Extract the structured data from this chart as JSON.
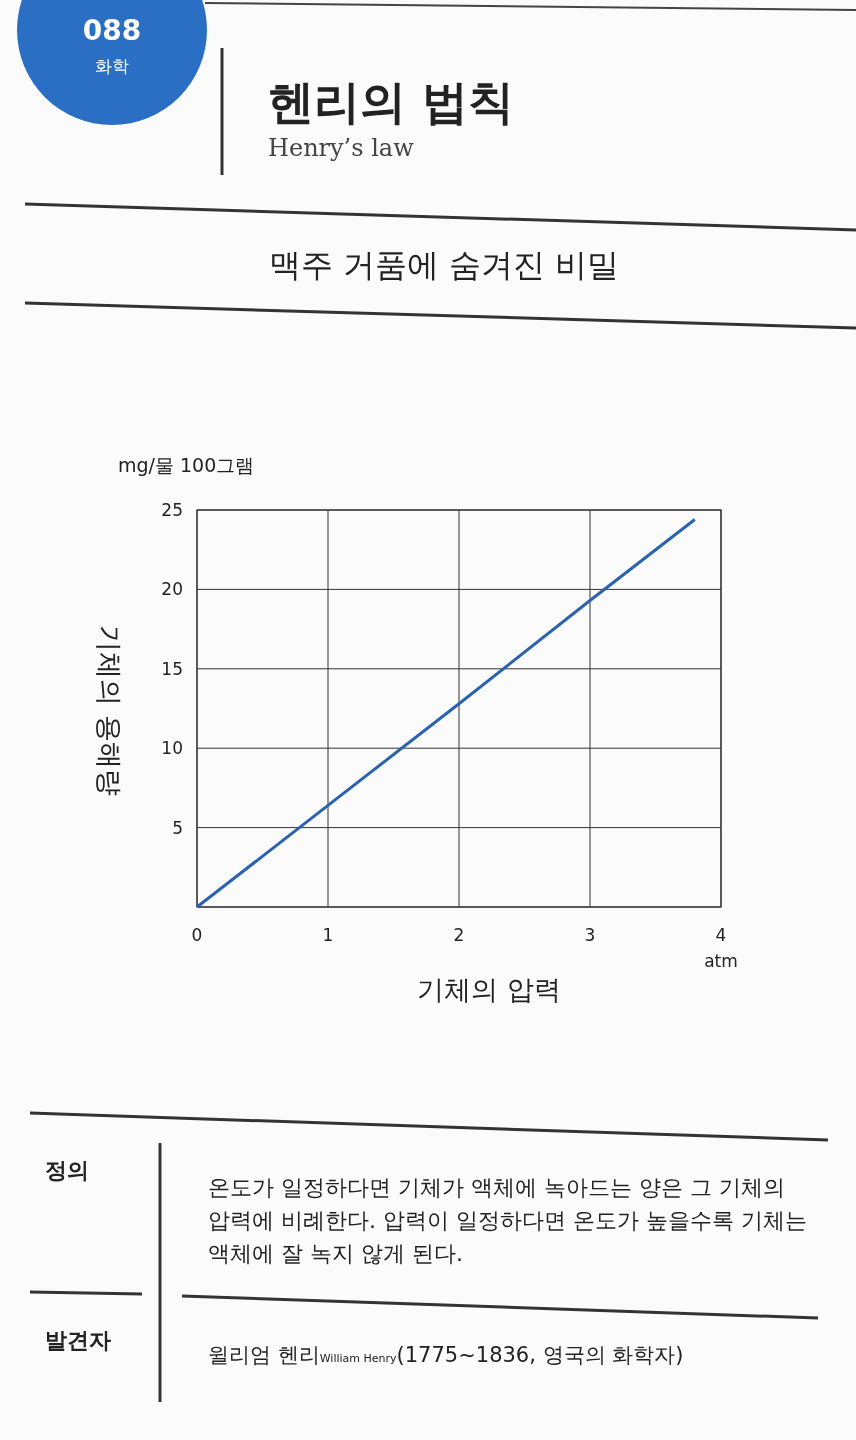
{
  "chart_data": {
    "type": "line",
    "title": "헨리의 법칙",
    "subtitle": "Henry’s law",
    "xlabel": "기체의 압력",
    "ylabel": "기체의 용해량",
    "x": [
      0,
      1,
      2,
      3,
      3.8
    ],
    "series": [
      {
        "color": "#2a62b0",
        "values": [
          0,
          6.4,
          12.8,
          19.3,
          24.4
        ]
      }
    ],
    "xlim": [
      0,
      4
    ],
    "ylim": [
      0,
      25
    ],
    "xticks": [
      0,
      1,
      2,
      3,
      4
    ],
    "yticks": [
      {
        "value": 0,
        "label": null
      },
      5,
      10,
      15,
      20,
      25
    ],
    "grid": true,
    "marker": "none",
    "line_style": "solid",
    "annotations": [
      "088",
      "화학",
      "맥주 거품에 숨겨진 비밀",
      "mg/물 100그램",
      "atm",
      "정의",
      "온도가 일정하다면 기체가 액체에 녹아드는 양은 그 기체의 압력에 비례한다. 압력이 일정하다면 온도가 높을수록 기체는 액체에 잘 녹지 않게 된다.",
      "발견자",
      "윌리엄 헨리",
      "William Henry",
      "(1775~1836, 영국의 화학자)"
    ]
  }
}
